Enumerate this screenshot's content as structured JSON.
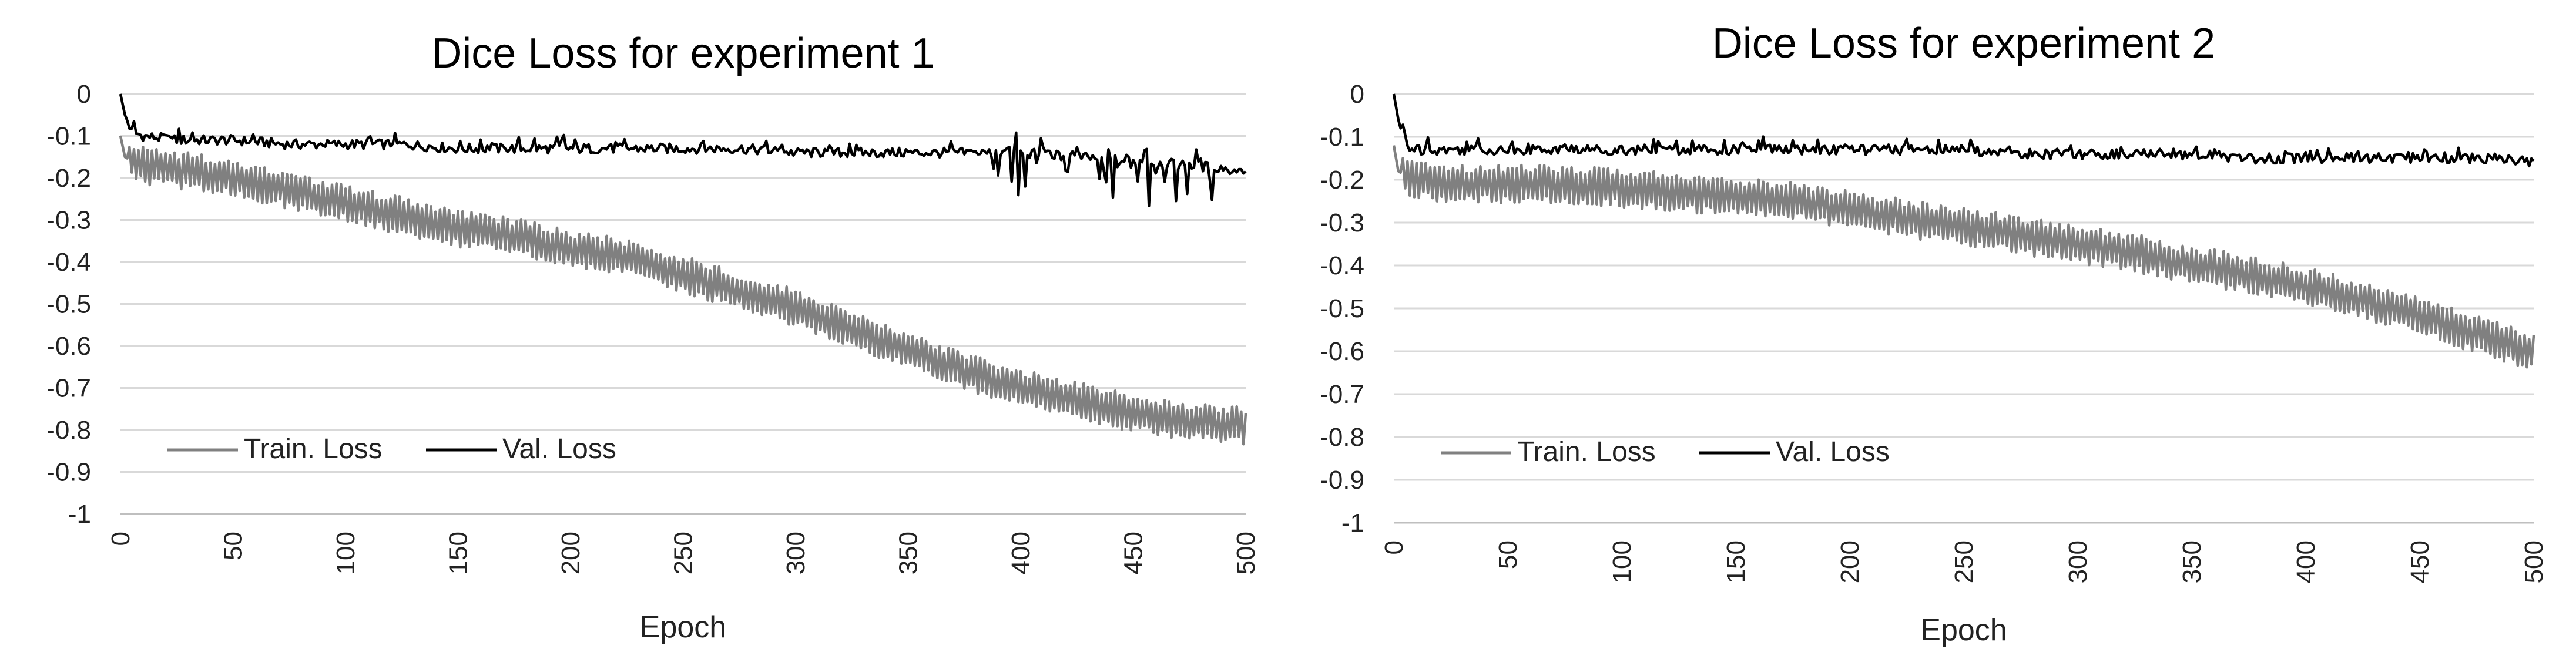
{
  "chart_data": [
    {
      "type": "line",
      "title": "Dice Loss for experiment 1",
      "xlabel": "Epoch",
      "ylabel": "",
      "xlim": [
        0,
        500
      ],
      "ylim": [
        -1,
        0
      ],
      "x_ticks": [
        "0",
        "50",
        "100",
        "150",
        "200",
        "250",
        "300",
        "350",
        "400",
        "450",
        "500"
      ],
      "y_ticks": [
        "0",
        "-0.1",
        "-0.2",
        "-0.3",
        "-0.4",
        "-0.5",
        "-0.6",
        "-0.7",
        "-0.8",
        "-0.9",
        "-1"
      ],
      "grid": "horizontal",
      "legend_position": "bottom-left",
      "series": [
        {
          "name": "Train. Loss",
          "color": "#808080",
          "x": [
            0,
            2,
            5,
            10,
            25,
            50,
            75,
            100,
            125,
            150,
            175,
            200,
            225,
            250,
            275,
            300,
            325,
            350,
            375,
            400,
            425,
            450,
            475,
            500
          ],
          "y": [
            -0.1,
            -0.15,
            -0.16,
            -0.17,
            -0.18,
            -0.2,
            -0.23,
            -0.26,
            -0.29,
            -0.32,
            -0.34,
            -0.37,
            -0.39,
            -0.43,
            -0.47,
            -0.51,
            -0.56,
            -0.61,
            -0.66,
            -0.7,
            -0.73,
            -0.76,
            -0.78,
            -0.79
          ]
        },
        {
          "name": "Val. Loss",
          "color": "#000000",
          "x": [
            0,
            2,
            5,
            10,
            25,
            50,
            75,
            100,
            125,
            150,
            175,
            200,
            225,
            250,
            275,
            300,
            325,
            350,
            375,
            400,
            425,
            450,
            475,
            500
          ],
          "y": [
            0.0,
            -0.05,
            -0.09,
            -0.1,
            -0.11,
            -0.11,
            -0.12,
            -0.12,
            -0.12,
            -0.13,
            -0.13,
            -0.13,
            -0.13,
            -0.13,
            -0.13,
            -0.14,
            -0.14,
            -0.14,
            -0.14,
            -0.14,
            -0.15,
            -0.16,
            -0.17,
            -0.18
          ]
        }
      ]
    },
    {
      "type": "line",
      "title": "Dice Loss for experiment 2",
      "xlabel": "Epoch",
      "ylabel": "",
      "xlim": [
        0,
        500
      ],
      "ylim": [
        -1,
        0
      ],
      "x_ticks": [
        "0",
        "50",
        "100",
        "150",
        "200",
        "250",
        "300",
        "350",
        "400",
        "450",
        "500"
      ],
      "y_ticks": [
        "0",
        "-0.1",
        "-0.2",
        "-0.3",
        "-0.4",
        "-0.5",
        "-0.6",
        "-0.7",
        "-0.8",
        "-0.9",
        "-1"
      ],
      "grid": "horizontal",
      "legend_position": "bottom-left",
      "series": [
        {
          "name": "Train. Loss",
          "color": "#808080",
          "x": [
            0,
            2,
            5,
            10,
            25,
            50,
            75,
            100,
            125,
            150,
            175,
            200,
            225,
            250,
            275,
            300,
            325,
            350,
            375,
            400,
            425,
            450,
            475,
            500
          ],
          "y": [
            -0.12,
            -0.18,
            -0.19,
            -0.2,
            -0.21,
            -0.21,
            -0.21,
            -0.22,
            -0.23,
            -0.24,
            -0.25,
            -0.27,
            -0.29,
            -0.31,
            -0.33,
            -0.35,
            -0.37,
            -0.4,
            -0.42,
            -0.45,
            -0.48,
            -0.52,
            -0.56,
            -0.6
          ]
        },
        {
          "name": "Val. Loss",
          "color": "#000000",
          "x": [
            0,
            2,
            5,
            10,
            25,
            50,
            75,
            100,
            125,
            150,
            175,
            200,
            225,
            250,
            275,
            300,
            325,
            350,
            375,
            400,
            425,
            450,
            475,
            500
          ],
          "y": [
            0.0,
            -0.06,
            -0.12,
            -0.13,
            -0.13,
            -0.13,
            -0.13,
            -0.13,
            -0.13,
            -0.13,
            -0.13,
            -0.13,
            -0.13,
            -0.13,
            -0.14,
            -0.14,
            -0.14,
            -0.14,
            -0.15,
            -0.15,
            -0.15,
            -0.15,
            -0.15,
            -0.16
          ]
        }
      ]
    }
  ]
}
